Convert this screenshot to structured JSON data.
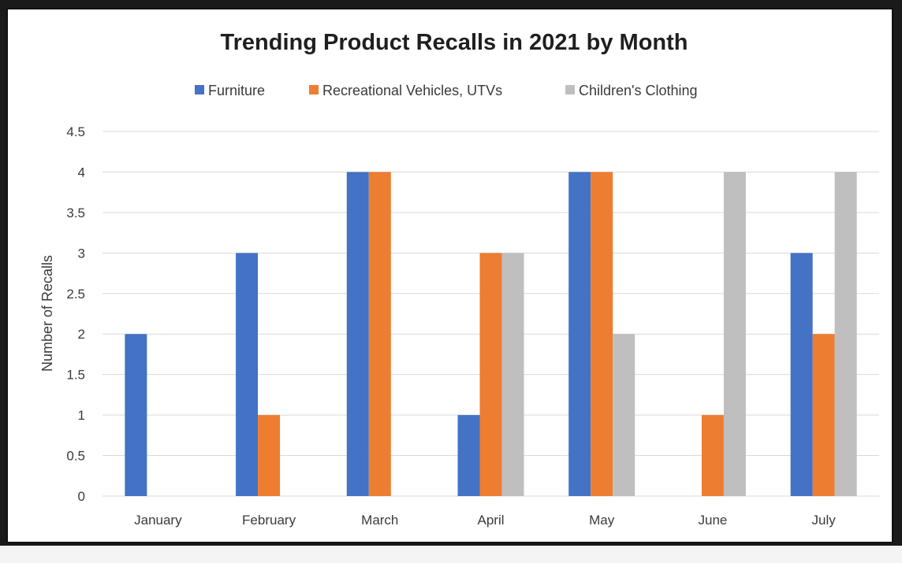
{
  "chart_data": {
    "type": "bar",
    "title": "Trending Product Recalls in 2021 by Month",
    "xlabel": "",
    "ylabel": "Number of Recalls",
    "categories": [
      "January",
      "February",
      "March",
      "April",
      "May",
      "June",
      "July"
    ],
    "series": [
      {
        "name": "Furniture",
        "color": "#4472C4",
        "values": [
          2,
          3,
          4,
          1,
          4,
          0,
          3
        ]
      },
      {
        "name": "Recreational Vehicles, UTVs",
        "color": "#ED7D31",
        "values": [
          0,
          1,
          4,
          3,
          4,
          1,
          2
        ]
      },
      {
        "name": "Children's Clothing",
        "color": "#BFBFBF",
        "values": [
          0,
          0,
          0,
          3,
          2,
          4,
          4
        ]
      }
    ],
    "ylim": [
      0,
      4.5
    ],
    "yticks": [
      "0",
      "0.5",
      "1",
      "1.5",
      "2",
      "2.5",
      "3",
      "3.5",
      "4",
      "4.5"
    ],
    "grid": true,
    "legend_position": "top"
  }
}
